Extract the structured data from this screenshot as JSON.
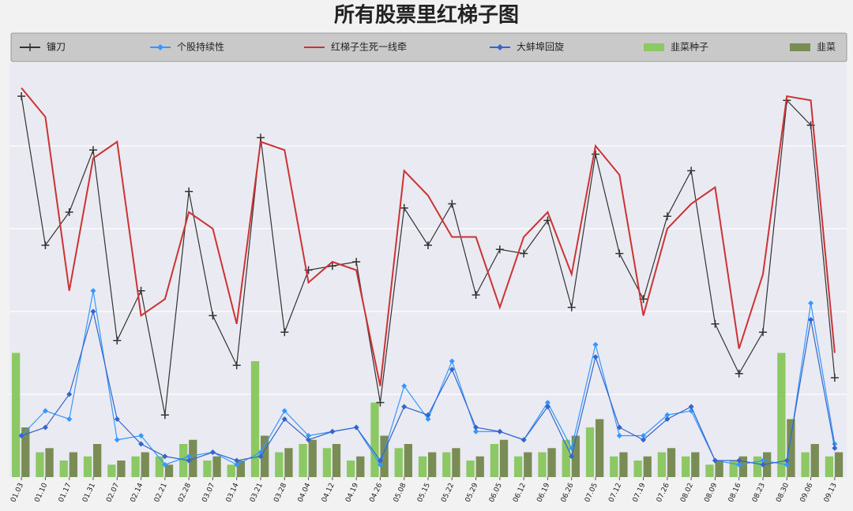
{
  "chart_data": {
    "type": "combo",
    "title": "所有股票里红梯子图",
    "categories": [
      "01.03",
      "01.10",
      "01.17",
      "01.31",
      "02.07",
      "02.14",
      "02.21",
      "02.28",
      "03.07",
      "03.14",
      "03.21",
      "03.28",
      "04.04",
      "04.12",
      "04.19",
      "04.26",
      "05.08",
      "05.15",
      "05.22",
      "05.29",
      "06.05",
      "06.12",
      "06.19",
      "06.26",
      "07.05",
      "07.12",
      "07.19",
      "07.26",
      "08.02",
      "08.09",
      "08.16",
      "08.23",
      "08.30",
      "09.06",
      "09.13"
    ],
    "ylim": [
      0,
      100
    ],
    "yticks": [
      20,
      40,
      60,
      80
    ],
    "grid": true,
    "series": [
      {
        "name": "镰刀",
        "type": "line",
        "marker": "plus",
        "color": "#333333",
        "values": [
          92,
          56,
          64,
          79,
          33,
          45,
          15,
          69,
          39,
          27,
          82,
          35,
          50,
          51,
          52,
          18,
          65,
          56,
          66,
          44,
          55,
          54,
          62,
          41,
          78,
          54,
          43,
          63,
          74,
          37,
          25,
          35,
          91,
          85,
          24
        ]
      },
      {
        "name": "个股持续性",
        "type": "line",
        "marker": "diamond",
        "color": "#3399ff",
        "values": [
          10,
          16,
          14,
          45,
          9,
          10,
          3,
          5,
          6,
          3,
          6,
          16,
          10,
          11,
          12,
          3,
          22,
          14,
          28,
          11,
          11,
          9,
          18,
          7,
          32,
          10,
          10,
          15,
          16,
          4,
          3,
          4,
          3,
          42,
          8
        ]
      },
      {
        "name": "红梯子生死一线牵",
        "type": "line",
        "marker": null,
        "color": "#cc3333",
        "values": [
          94,
          87,
          45,
          77,
          81,
          39,
          43,
          64,
          60,
          37,
          81,
          79,
          47,
          52,
          50,
          22,
          74,
          68,
          58,
          58,
          41,
          58,
          64,
          49,
          80,
          73,
          39,
          60,
          66,
          70,
          31,
          49,
          92,
          91,
          30
        ]
      },
      {
        "name": "大蚌埠回旋",
        "type": "line",
        "marker": "diamond",
        "color": "#3366cc",
        "values": [
          10,
          12,
          20,
          40,
          14,
          8,
          5,
          4,
          6,
          4,
          5,
          14,
          9,
          11,
          12,
          4,
          17,
          15,
          26,
          12,
          11,
          9,
          17,
          5,
          29,
          12,
          9,
          14,
          17,
          4,
          4,
          3,
          4,
          38,
          7
        ]
      },
      {
        "name": "韭菜种子",
        "type": "bar",
        "color": "#8cc864",
        "values": [
          30,
          6,
          4,
          5,
          3,
          5,
          5,
          8,
          4,
          3,
          28,
          6,
          8,
          7,
          4,
          18,
          7,
          5,
          6,
          4,
          8,
          5,
          6,
          9,
          12,
          5,
          4,
          6,
          5,
          3,
          4,
          5,
          30,
          6,
          5
        ]
      },
      {
        "name": "韭菜",
        "type": "bar",
        "color": "#7a8c55",
        "values": [
          12,
          7,
          6,
          8,
          4,
          6,
          3,
          9,
          5,
          4,
          10,
          7,
          9,
          8,
          5,
          10,
          8,
          6,
          7,
          5,
          9,
          6,
          7,
          10,
          14,
          6,
          5,
          7,
          6,
          4,
          5,
          6,
          14,
          8,
          6
        ]
      }
    ]
  }
}
